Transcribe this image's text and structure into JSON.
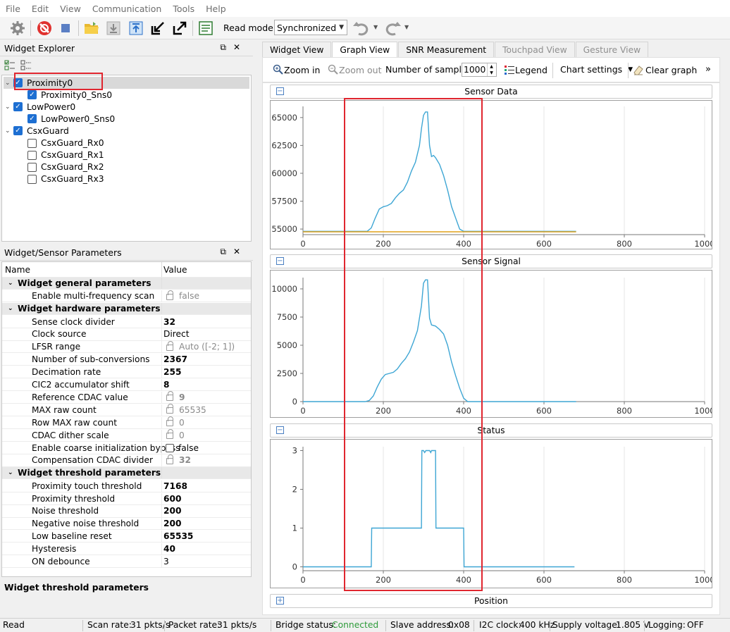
{
  "menu": [
    "File",
    "Edit",
    "View",
    "Communication",
    "Tools",
    "Help"
  ],
  "toolbar": {
    "read_mode_label": "Read mode:",
    "read_mode_value": "Synchronized"
  },
  "widget_explorer": {
    "title": "Widget Explorer",
    "items": [
      {
        "label": "Proximity0",
        "level": 0,
        "checked": true
      },
      {
        "label": "Proximity0_Sns0",
        "level": 1,
        "checked": true
      },
      {
        "label": "LowPower0",
        "level": 0,
        "checked": true
      },
      {
        "label": "LowPower0_Sns0",
        "level": 1,
        "checked": true
      },
      {
        "label": "CsxGuard",
        "level": 0,
        "checked": true
      },
      {
        "label": "CsxGuard_Rx0",
        "level": 1,
        "checked": false
      },
      {
        "label": "CsxGuard_Rx1",
        "level": 1,
        "checked": false
      },
      {
        "label": "CsxGuard_Rx2",
        "level": 1,
        "checked": false
      },
      {
        "label": "CsxGuard_Rx3",
        "level": 1,
        "checked": false
      }
    ]
  },
  "params": {
    "title": "Widget/Sensor Parameters",
    "col_name": "Name",
    "col_value": "Value",
    "rows": [
      {
        "group": true,
        "name": "Widget general parameters"
      },
      {
        "name": "Enable multi-frequency scan",
        "value": "false",
        "style": "locked"
      },
      {
        "group": true,
        "name": "Widget hardware parameters"
      },
      {
        "name": "Sense clock divider",
        "value": "32",
        "style": "bold"
      },
      {
        "name": "Clock source",
        "value": "Direct",
        "style": "normal"
      },
      {
        "name": "LFSR range",
        "value": "Auto ([-2; 1])",
        "style": "locked"
      },
      {
        "name": "Number of sub-conversions",
        "value": "2367",
        "style": "bold"
      },
      {
        "name": "Decimation rate",
        "value": "255",
        "style": "bold"
      },
      {
        "name": "CIC2 accumulator shift",
        "value": "8",
        "style": "bold"
      },
      {
        "name": "Reference CDAC value",
        "value": "9",
        "style": "lockedbold"
      },
      {
        "name": "MAX raw count",
        "value": "65535",
        "style": "locked"
      },
      {
        "name": "Row MAX raw count",
        "value": "0",
        "style": "locked"
      },
      {
        "name": "CDAC dither scale",
        "value": "0",
        "style": "locked"
      },
      {
        "name": "Enable coarse initialization bypass",
        "value": "false",
        "style": "check"
      },
      {
        "name": "Compensation CDAC divider",
        "value": "32",
        "style": "lockedbold"
      },
      {
        "group": true,
        "name": "Widget threshold parameters"
      },
      {
        "name": "Proximity touch threshold",
        "value": "7168",
        "style": "bold"
      },
      {
        "name": "Proximity threshold",
        "value": "600",
        "style": "bold"
      },
      {
        "name": "Noise threshold",
        "value": "200",
        "style": "bold"
      },
      {
        "name": "Negative noise threshold",
        "value": "200",
        "style": "bold"
      },
      {
        "name": "Low baseline reset",
        "value": "65535",
        "style": "bold"
      },
      {
        "name": "Hysteresis",
        "value": "40",
        "style": "bold"
      },
      {
        "name": "ON debounce",
        "value": "3",
        "style": "normal"
      }
    ],
    "description_title": "Widget threshold parameters"
  },
  "tabs": [
    {
      "label": "Widget View",
      "state": "normal"
    },
    {
      "label": "Graph View",
      "state": "active"
    },
    {
      "label": "SNR Measurement",
      "state": "normal"
    },
    {
      "label": "Touchpad View",
      "state": "disabled"
    },
    {
      "label": "Gesture View",
      "state": "disabled"
    }
  ],
  "graph_toolbar": {
    "zoom_in": "Zoom in",
    "zoom_out": "Zoom out",
    "samples_label": "Number of samples:",
    "samples_value": "1000",
    "legend": "Legend",
    "chart_settings": "Chart settings",
    "clear_graph": "Clear graph",
    "more": "»"
  },
  "colors": {
    "signal": "#3ea6d4",
    "baseline": "#e0a21a",
    "highlight": "#e0262f",
    "accent": "#1d6fd2"
  },
  "chart_data": [
    {
      "type": "line",
      "title": "Sensor Data",
      "xlim": [
        0,
        1000
      ],
      "xticks": [
        0,
        200,
        400,
        600,
        800,
        1000
      ],
      "ylim": [
        54500,
        66000
      ],
      "yticks": [
        55000,
        57500,
        60000,
        62500,
        65000
      ],
      "series": [
        {
          "color": "#3ea6d4",
          "x": [
            0,
            160,
            170,
            180,
            190,
            200,
            210,
            220,
            230,
            240,
            250,
            260,
            270,
            280,
            290,
            295,
            300,
            305,
            310,
            315,
            320,
            325,
            330,
            340,
            350,
            360,
            370,
            380,
            390,
            400,
            405,
            410,
            680
          ],
          "y": [
            54800,
            54800,
            55100,
            56000,
            56800,
            57000,
            57100,
            57300,
            57800,
            58200,
            58500,
            59200,
            60200,
            61000,
            62500,
            64000,
            65200,
            65500,
            65500,
            62500,
            61500,
            61600,
            61400,
            60800,
            59800,
            58500,
            57000,
            56000,
            55000,
            54800,
            54800,
            54800,
            54800
          ]
        },
        {
          "color": "#e0a21a",
          "x": [
            0,
            680
          ],
          "y": [
            54750,
            54750
          ]
        }
      ]
    },
    {
      "type": "line",
      "title": "Sensor Signal",
      "xlim": [
        0,
        1000
      ],
      "xticks": [
        0,
        200,
        400,
        600,
        800,
        1000
      ],
      "ylim": [
        0,
        11000
      ],
      "yticks": [
        0,
        2500,
        5000,
        7500,
        10000
      ],
      "series": [
        {
          "color": "#3ea6d4",
          "x": [
            0,
            155,
            165,
            175,
            185,
            195,
            205,
            215,
            225,
            235,
            245,
            255,
            265,
            275,
            285,
            295,
            300,
            305,
            310,
            315,
            320,
            330,
            340,
            350,
            360,
            370,
            380,
            390,
            400,
            410,
            680
          ],
          "y": [
            0,
            0,
            100,
            500,
            1300,
            2000,
            2400,
            2500,
            2600,
            2900,
            3400,
            3800,
            4400,
            5300,
            6300,
            8500,
            10500,
            10800,
            10800,
            7400,
            6800,
            6700,
            6400,
            6000,
            5000,
            3500,
            2300,
            1200,
            300,
            0,
            0
          ]
        }
      ]
    },
    {
      "type": "line",
      "title": "Status",
      "xlim": [
        0,
        1000
      ],
      "xticks": [
        0,
        200,
        400,
        600,
        800,
        1000
      ],
      "ylim": [
        -0.1,
        3.1
      ],
      "yticks": [
        0,
        1,
        2,
        3
      ],
      "series": [
        {
          "color": "#3ea6d4",
          "x": [
            0,
            170,
            171,
            295,
            296,
            300,
            303,
            306,
            309,
            315,
            318,
            320,
            330,
            331,
            400,
            401,
            676
          ],
          "y": [
            0,
            0,
            1,
            1,
            3,
            3,
            2.95,
            3,
            3,
            3,
            2.95,
            3,
            3,
            1,
            1,
            0,
            0
          ]
        }
      ]
    }
  ],
  "position_section": "Position",
  "status_bar": {
    "state": "Read",
    "scan_rate_label": "Scan rate:",
    "scan_rate": "31 pkts/s",
    "packet_rate_label": "Packet rate:",
    "packet_rate": "31 pkts/s",
    "bridge_label": "Bridge status:",
    "bridge_value": "Connected",
    "slave_label": "Slave address:",
    "slave_value": "0x08",
    "i2c_label": "I2C clock:",
    "i2c_value": "400 kHz",
    "voltage_label": "Supply voltage:",
    "voltage_value": "1.805 V",
    "logging_label": "Logging:",
    "logging_value": "OFF"
  }
}
